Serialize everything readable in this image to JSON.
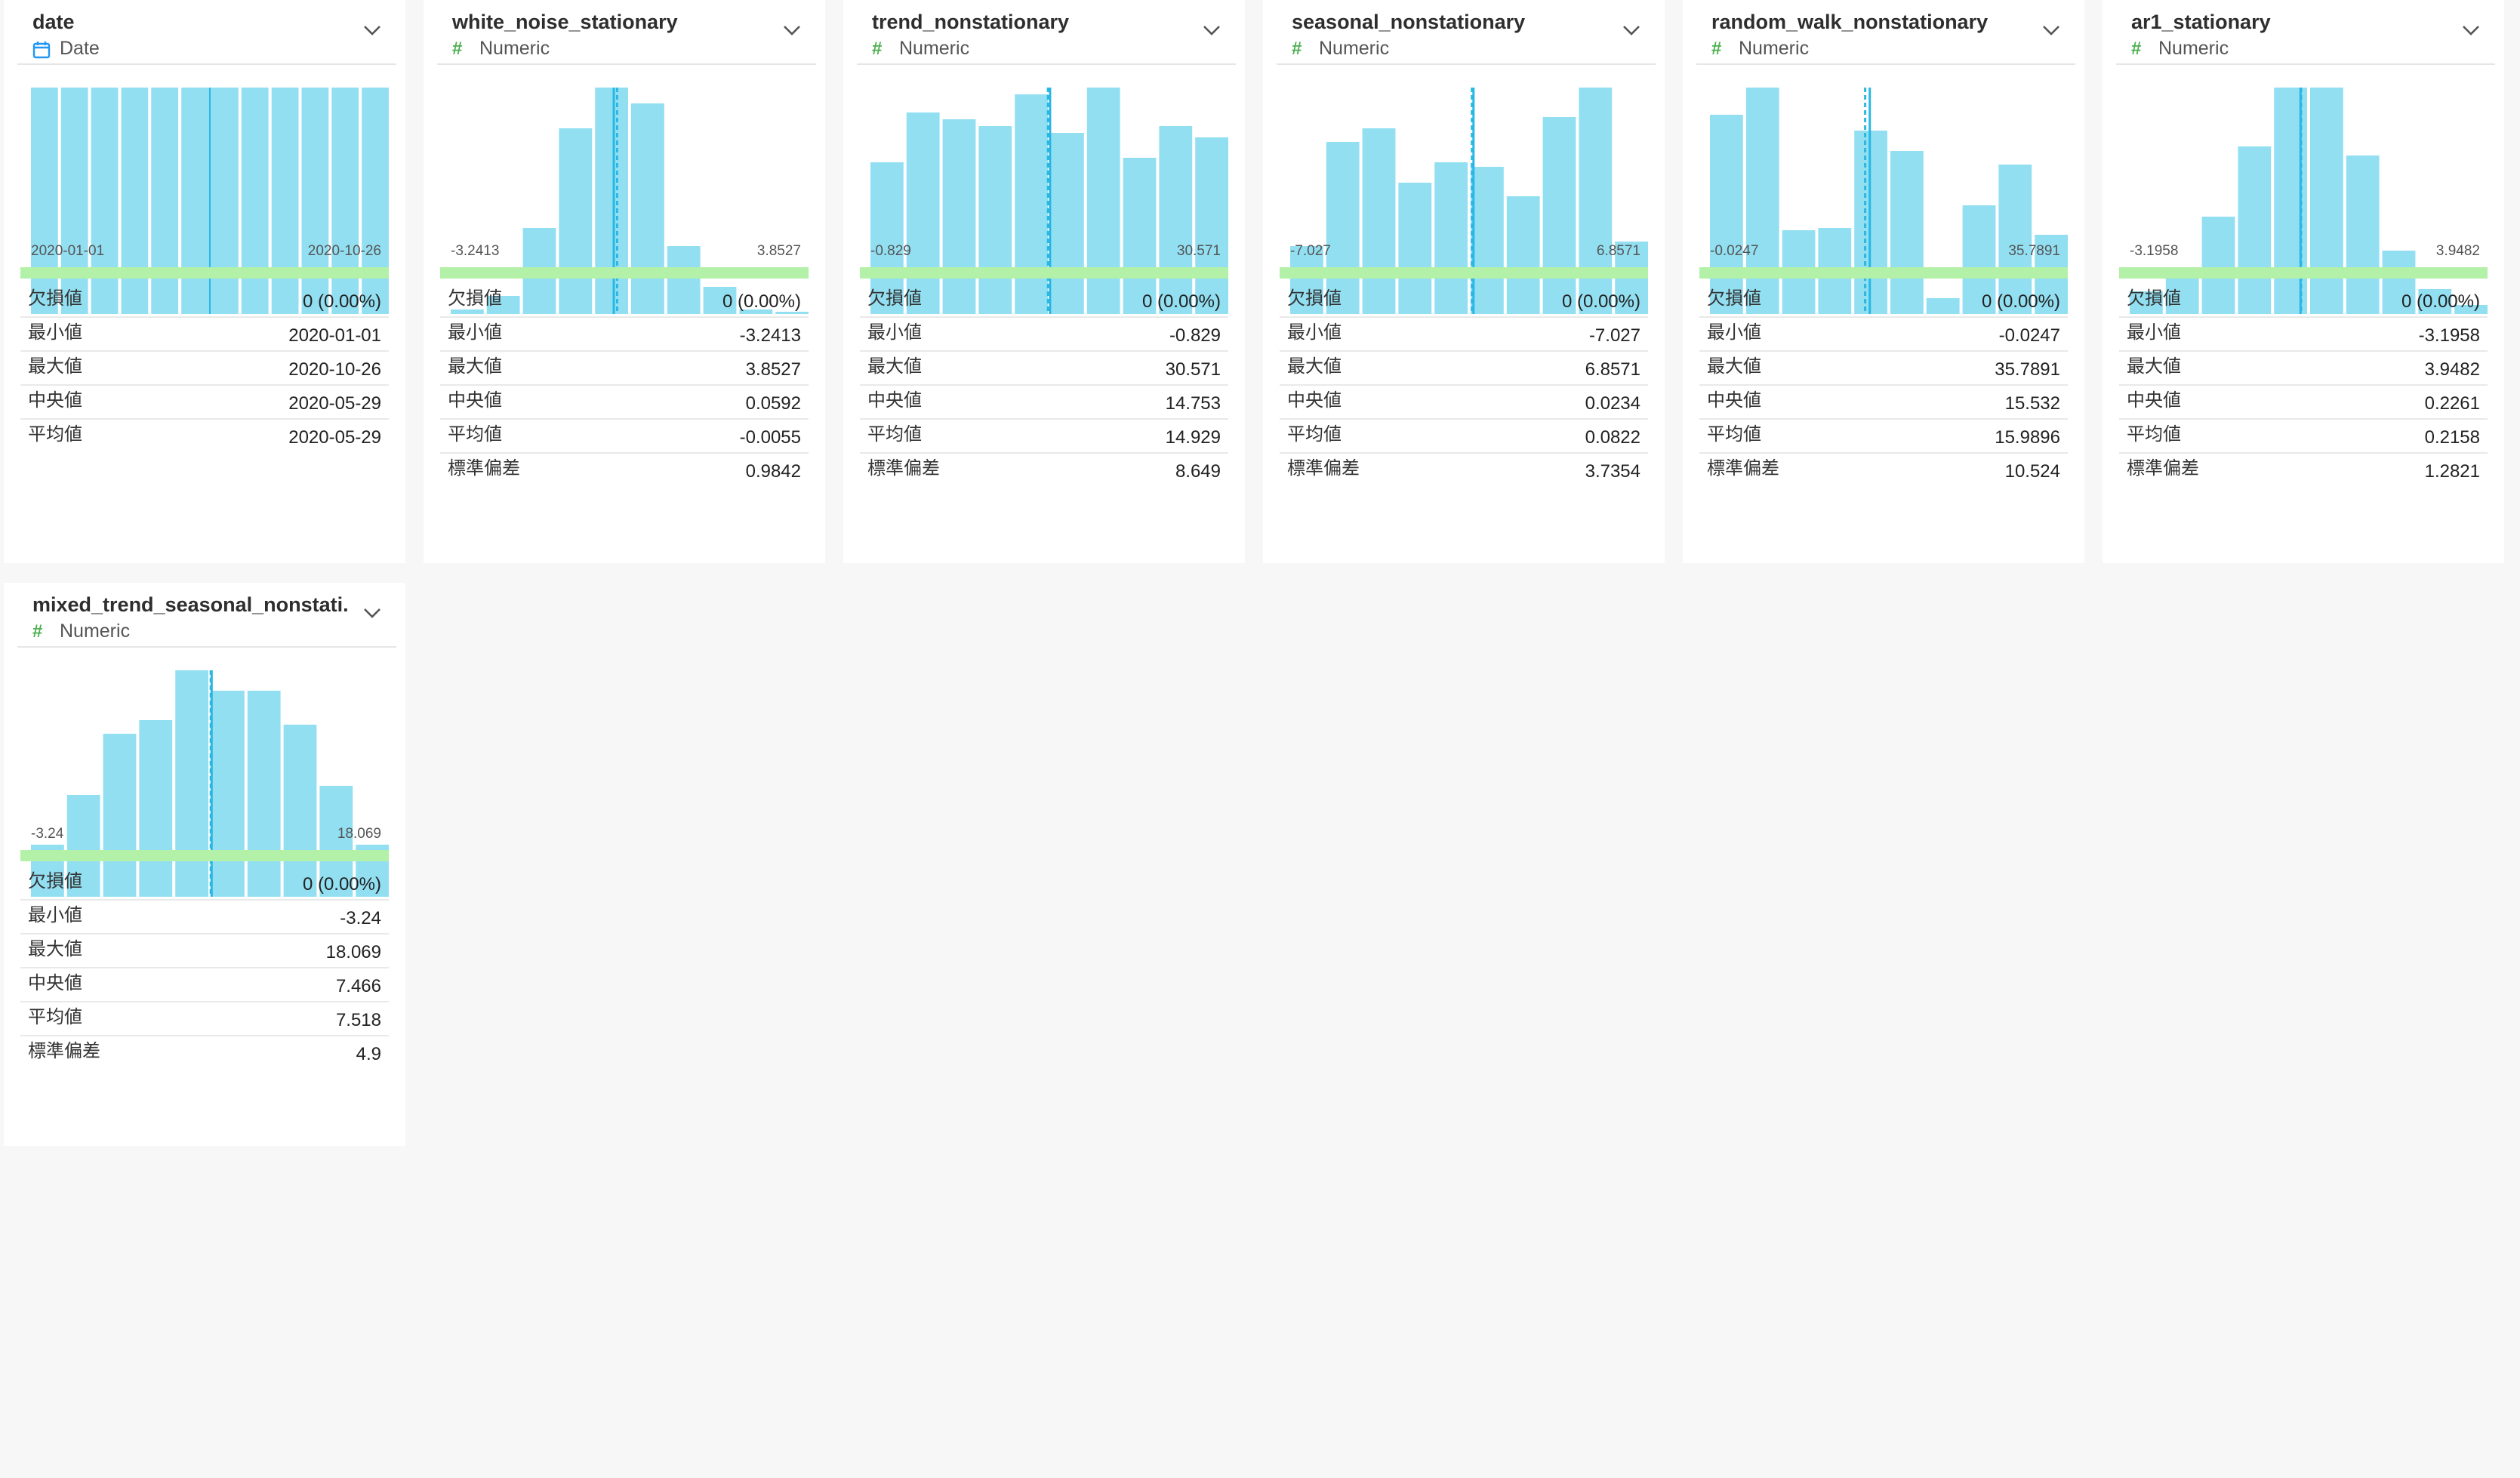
{
  "stat_labels": {
    "missing": "欠損値",
    "min": "最小値",
    "max": "最大値",
    "median": "中央値",
    "mean": "平均値",
    "std": "標準偏差"
  },
  "colors": {
    "bar": "#92dff2",
    "marker": "#29b8e3",
    "quality": "#b3f0a8",
    "numeric_icon": "#4caf50",
    "date_icon": "#2196f3"
  },
  "columns": [
    {
      "name": "date",
      "type": "Date",
      "type_icon": "calendar-icon",
      "axis_min": "2020-01-01",
      "axis_max": "2020-10-26",
      "stats": {
        "missing": "0 (0.00%)",
        "min": "2020-01-01",
        "max": "2020-10-26",
        "median": "2020-05-29",
        "mean": "2020-05-29"
      }
    },
    {
      "name": "white_noise_stationary",
      "type": "Numeric",
      "type_icon": "hash-icon",
      "axis_min": "-3.2413",
      "axis_max": "3.8527",
      "stats": {
        "missing": "0 (0.00%)",
        "min": "-3.2413",
        "max": "3.8527",
        "median": "0.0592",
        "mean": "-0.0055",
        "std": "0.9842"
      }
    },
    {
      "name": "trend_nonstationary",
      "type": "Numeric",
      "type_icon": "hash-icon",
      "axis_min": "-0.829",
      "axis_max": "30.571",
      "stats": {
        "missing": "0 (0.00%)",
        "min": "-0.829",
        "max": "30.571",
        "median": "14.753",
        "mean": "14.929",
        "std": "8.649"
      }
    },
    {
      "name": "seasonal_nonstationary",
      "type": "Numeric",
      "type_icon": "hash-icon",
      "axis_min": "-7.027",
      "axis_max": "6.8571",
      "stats": {
        "missing": "0 (0.00%)",
        "min": "-7.027",
        "max": "6.8571",
        "median": "0.0234",
        "mean": "0.0822",
        "std": "3.7354"
      }
    },
    {
      "name": "random_walk_nonstationary",
      "type": "Numeric",
      "type_icon": "hash-icon",
      "axis_min": "-0.0247",
      "axis_max": "35.7891",
      "stats": {
        "missing": "0 (0.00%)",
        "min": "-0.0247",
        "max": "35.7891",
        "median": "15.532",
        "mean": "15.9896",
        "std": "10.524"
      }
    },
    {
      "name": "ar1_stationary",
      "type": "Numeric",
      "type_icon": "hash-icon",
      "axis_min": "-3.1958",
      "axis_max": "3.9482",
      "stats": {
        "missing": "0 (0.00%)",
        "min": "-3.1958",
        "max": "3.9482",
        "median": "0.2261",
        "mean": "0.2158",
        "std": "1.2821"
      }
    },
    {
      "name": "mixed_trend_seasonal_nonstati.",
      "type": "Numeric",
      "type_icon": "hash-icon",
      "axis_min": "-3.24",
      "axis_max": "18.069",
      "stats": {
        "missing": "0 (0.00%)",
        "min": "-3.24",
        "max": "18.069",
        "median": "7.466",
        "mean": "7.518",
        "std": "4.9"
      }
    }
  ],
  "chart_data": [
    {
      "type": "bar",
      "title": "date",
      "x_range": [
        "2020-01-01",
        "2020-10-26"
      ],
      "values": [
        100,
        100,
        100,
        100,
        100,
        100,
        100,
        100,
        100,
        100,
        100,
        100
      ],
      "mean_marker": 0.5,
      "median_marker": 0.5
    },
    {
      "type": "bar",
      "title": "white_noise_stationary",
      "x_range": [
        -3.2413,
        3.8527
      ],
      "values": [
        2,
        8,
        38,
        82,
        100,
        93,
        30,
        12,
        2,
        1
      ],
      "mean_marker": -0.0055,
      "median_marker": 0.0592
    },
    {
      "type": "bar",
      "title": "trend_nonstationary",
      "x_range": [
        -0.829,
        30.571
      ],
      "values": [
        67,
        89,
        86,
        83,
        97,
        80,
        100,
        69,
        83,
        78
      ],
      "mean_marker": 14.929,
      "median_marker": 14.753
    },
    {
      "type": "bar",
      "title": "seasonal_nonstationary",
      "x_range": [
        -7.027,
        6.8571
      ],
      "values": [
        30,
        76,
        82,
        58,
        67,
        65,
        52,
        87,
        100,
        32
      ],
      "mean_marker": 0.0822,
      "median_marker": 0.0234
    },
    {
      "type": "bar",
      "title": "random_walk_nonstationary",
      "x_range": [
        -0.0247,
        35.7891
      ],
      "values": [
        88,
        100,
        37,
        38,
        81,
        72,
        7,
        48,
        66,
        35
      ],
      "mean_marker": 15.9896,
      "median_marker": 15.532
    },
    {
      "type": "bar",
      "title": "ar1_stationary",
      "x_range": [
        -3.1958,
        3.9482
      ],
      "values": [
        10,
        18,
        43,
        74,
        100,
        100,
        70,
        28,
        11,
        4
      ],
      "mean_marker": 0.2158,
      "median_marker": 0.2261
    },
    {
      "type": "bar",
      "title": "mixed_trend_seasonal_nonstati.",
      "x_range": [
        -3.24,
        18.069
      ],
      "values": [
        23,
        45,
        72,
        78,
        100,
        91,
        91,
        76,
        49,
        23
      ],
      "mean_marker": 7.518,
      "median_marker": 7.466
    }
  ]
}
